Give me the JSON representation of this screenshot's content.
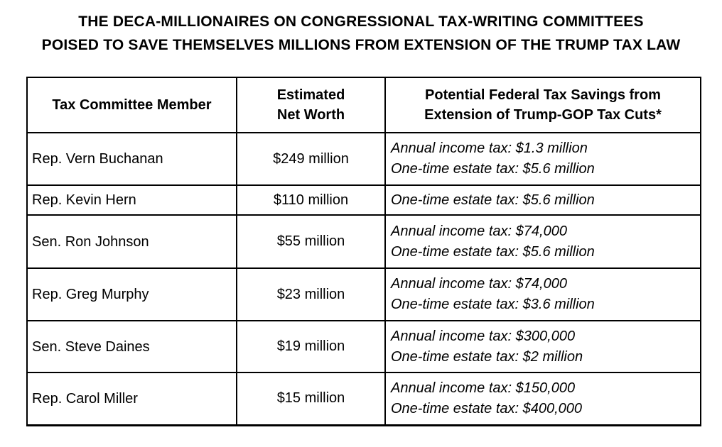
{
  "title": {
    "line1": "THE DECA-MILLIONAIRES ON CONGRESSIONAL TAX-WRITING COMMITTEES",
    "line2": "POISED TO SAVE THEMSELVES MILLIONS FROM EXTENSION OF THE TRUMP TAX LAW"
  },
  "chart_data": {
    "type": "table",
    "title": "THE DECA-MILLIONAIRES ON CONGRESSIONAL TAX-WRITING COMMITTEES POISED TO SAVE THEMSELVES MILLIONS FROM EXTENSION OF THE TRUMP TAX LAW",
    "columns": [
      {
        "label": "Tax Committee Member",
        "lines": [
          "Tax Committee Member"
        ]
      },
      {
        "label": "Estimated Net Worth",
        "lines": [
          "Estimated",
          "Net Worth"
        ]
      },
      {
        "label": "Potential Federal Tax Savings from Extension of Trump-GOP Tax Cuts*",
        "lines": [
          "Potential Federal Tax Savings from",
          "Extension of Trump-GOP Tax Cuts*"
        ]
      }
    ],
    "rows": [
      {
        "member": "Rep. Vern Buchanan",
        "net_worth": "$249 million",
        "savings_lines": [
          "Annual income tax: $1.3 million",
          "One-time estate tax: $5.6 million"
        ]
      },
      {
        "member": "Rep. Kevin Hern",
        "net_worth": "$110 million",
        "savings_lines": [
          "One-time estate tax: $5.6 million"
        ]
      },
      {
        "member": "Sen. Ron Johnson",
        "net_worth": "$55 million",
        "savings_lines": [
          "Annual income tax: $74,000",
          "One-time estate tax: $5.6 million"
        ]
      },
      {
        "member": "Rep. Greg Murphy",
        "net_worth": "$23 million",
        "savings_lines": [
          "Annual income tax: $74,000",
          "One-time estate tax: $3.6 million"
        ]
      },
      {
        "member": "Sen. Steve Daines",
        "net_worth": "$19 million",
        "savings_lines": [
          "Annual income tax: $300,000",
          "One-time estate tax: $2 million"
        ]
      },
      {
        "member": "Rep. Carol Miller",
        "net_worth": "$15 million",
        "savings_lines": [
          "Annual income tax: $150,000",
          "One-time estate tax: $400,000"
        ]
      }
    ]
  },
  "colors": {
    "text": "#000000",
    "background": "#ffffff",
    "border": "#000000"
  }
}
